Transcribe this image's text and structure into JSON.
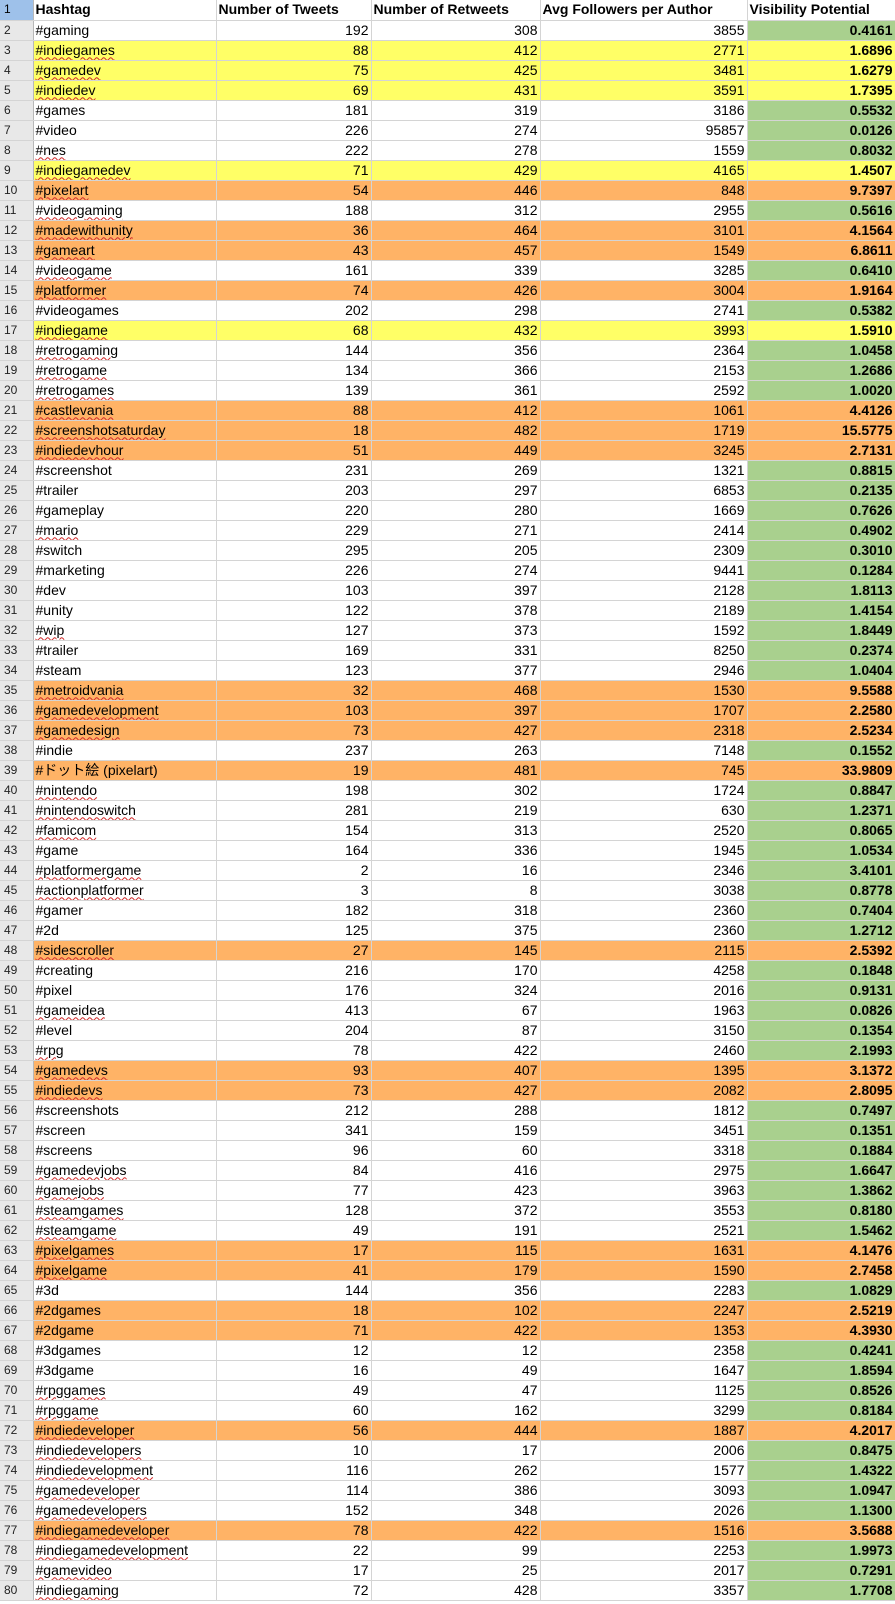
{
  "colors": {
    "yellow_highlight": "#ffff66",
    "orange_highlight": "#ffb366",
    "green_fill": "#a9d08e",
    "row_header_bg": "#e8e8e8",
    "selected_row_header": "#9ec1ea"
  },
  "sheet": {
    "header_row_number": "1",
    "columns": [
      "Hashtag",
      "Number of Tweets",
      "Number of Retweets",
      "Avg Followers per Author",
      "Visibility Potential"
    ],
    "rows": [
      {
        "n": "2",
        "tag": "#gaming",
        "tweets": "192",
        "retweets": "308",
        "followers": "3855",
        "vis": "0.4161",
        "hl": "none",
        "sp": false
      },
      {
        "n": "3",
        "tag": "#indiegames",
        "tweets": "88",
        "retweets": "412",
        "followers": "2771",
        "vis": "1.6896",
        "hl": "yellow",
        "sp": true
      },
      {
        "n": "4",
        "tag": "#gamedev",
        "tweets": "75",
        "retweets": "425",
        "followers": "3481",
        "vis": "1.6279",
        "hl": "yellow",
        "sp": true
      },
      {
        "n": "5",
        "tag": "#indiedev",
        "tweets": "69",
        "retweets": "431",
        "followers": "3591",
        "vis": "1.7395",
        "hl": "yellow",
        "sp": true
      },
      {
        "n": "6",
        "tag": "#games",
        "tweets": "181",
        "retweets": "319",
        "followers": "3186",
        "vis": "0.5532",
        "hl": "none",
        "sp": false
      },
      {
        "n": "7",
        "tag": "#video",
        "tweets": "226",
        "retweets": "274",
        "followers": "95857",
        "vis": "0.0126",
        "hl": "none",
        "sp": false
      },
      {
        "n": "8",
        "tag": "#nes",
        "tweets": "222",
        "retweets": "278",
        "followers": "1559",
        "vis": "0.8032",
        "hl": "none",
        "sp": true
      },
      {
        "n": "9",
        "tag": "#indiegamedev",
        "tweets": "71",
        "retweets": "429",
        "followers": "4165",
        "vis": "1.4507",
        "hl": "yellow",
        "sp": true
      },
      {
        "n": "10",
        "tag": "#pixelart",
        "tweets": "54",
        "retweets": "446",
        "followers": "848",
        "vis": "9.7397",
        "hl": "orange",
        "sp": true
      },
      {
        "n": "11",
        "tag": "#videogaming",
        "tweets": "188",
        "retweets": "312",
        "followers": "2955",
        "vis": "0.5616",
        "hl": "none",
        "sp": true
      },
      {
        "n": "12",
        "tag": "#madewithunity",
        "tweets": "36",
        "retweets": "464",
        "followers": "3101",
        "vis": "4.1564",
        "hl": "orange",
        "sp": true
      },
      {
        "n": "13",
        "tag": "#gameart",
        "tweets": "43",
        "retweets": "457",
        "followers": "1549",
        "vis": "6.8611",
        "hl": "orange",
        "sp": true
      },
      {
        "n": "14",
        "tag": "#videogame",
        "tweets": "161",
        "retweets": "339",
        "followers": "3285",
        "vis": "0.6410",
        "hl": "none",
        "sp": true
      },
      {
        "n": "15",
        "tag": "#platformer",
        "tweets": "74",
        "retweets": "426",
        "followers": "3004",
        "vis": "1.9164",
        "hl": "orange",
        "sp": true
      },
      {
        "n": "16",
        "tag": "#videogames",
        "tweets": "202",
        "retweets": "298",
        "followers": "2741",
        "vis": "0.5382",
        "hl": "none",
        "sp": false
      },
      {
        "n": "17",
        "tag": "#indiegame",
        "tweets": "68",
        "retweets": "432",
        "followers": "3993",
        "vis": "1.5910",
        "hl": "yellow",
        "sp": true
      },
      {
        "n": "18",
        "tag": "#retrogaming",
        "tweets": "144",
        "retweets": "356",
        "followers": "2364",
        "vis": "1.0458",
        "hl": "none",
        "sp": true
      },
      {
        "n": "19",
        "tag": "#retrogame",
        "tweets": "134",
        "retweets": "366",
        "followers": "2153",
        "vis": "1.2686",
        "hl": "none",
        "sp": true
      },
      {
        "n": "20",
        "tag": "#retrogames",
        "tweets": "139",
        "retweets": "361",
        "followers": "2592",
        "vis": "1.0020",
        "hl": "none",
        "sp": true
      },
      {
        "n": "21",
        "tag": "#castlevania",
        "tweets": "88",
        "retweets": "412",
        "followers": "1061",
        "vis": "4.4126",
        "hl": "orange",
        "sp": true
      },
      {
        "n": "22",
        "tag": "#screenshotsaturday",
        "tweets": "18",
        "retweets": "482",
        "followers": "1719",
        "vis": "15.5775",
        "hl": "orange",
        "sp": true
      },
      {
        "n": "23",
        "tag": "#indiedevhour",
        "tweets": "51",
        "retweets": "449",
        "followers": "3245",
        "vis": "2.7131",
        "hl": "orange",
        "sp": true
      },
      {
        "n": "24",
        "tag": "#screenshot",
        "tweets": "231",
        "retweets": "269",
        "followers": "1321",
        "vis": "0.8815",
        "hl": "none",
        "sp": false
      },
      {
        "n": "25",
        "tag": "#trailer",
        "tweets": "203",
        "retweets": "297",
        "followers": "6853",
        "vis": "0.2135",
        "hl": "none",
        "sp": false
      },
      {
        "n": "26",
        "tag": "#gameplay",
        "tweets": "220",
        "retweets": "280",
        "followers": "1669",
        "vis": "0.7626",
        "hl": "none",
        "sp": false
      },
      {
        "n": "27",
        "tag": "#mario",
        "tweets": "229",
        "retweets": "271",
        "followers": "2414",
        "vis": "0.4902",
        "hl": "none",
        "sp": true
      },
      {
        "n": "28",
        "tag": "#switch",
        "tweets": "295",
        "retweets": "205",
        "followers": "2309",
        "vis": "0.3010",
        "hl": "none",
        "sp": false
      },
      {
        "n": "29",
        "tag": "#marketing",
        "tweets": "226",
        "retweets": "274",
        "followers": "9441",
        "vis": "0.1284",
        "hl": "none",
        "sp": false
      },
      {
        "n": "30",
        "tag": "#dev",
        "tweets": "103",
        "retweets": "397",
        "followers": "2128",
        "vis": "1.8113",
        "hl": "none",
        "sp": false
      },
      {
        "n": "31",
        "tag": "#unity",
        "tweets": "122",
        "retweets": "378",
        "followers": "2189",
        "vis": "1.4154",
        "hl": "none",
        "sp": false
      },
      {
        "n": "32",
        "tag": "#wip",
        "tweets": "127",
        "retweets": "373",
        "followers": "1592",
        "vis": "1.8449",
        "hl": "none",
        "sp": true
      },
      {
        "n": "33",
        "tag": "#trailer",
        "tweets": "169",
        "retweets": "331",
        "followers": "8250",
        "vis": "0.2374",
        "hl": "none",
        "sp": false
      },
      {
        "n": "34",
        "tag": "#steam",
        "tweets": "123",
        "retweets": "377",
        "followers": "2946",
        "vis": "1.0404",
        "hl": "none",
        "sp": false
      },
      {
        "n": "35",
        "tag": "#metroidvania",
        "tweets": "32",
        "retweets": "468",
        "followers": "1530",
        "vis": "9.5588",
        "hl": "orange",
        "sp": true
      },
      {
        "n": "36",
        "tag": "#gamedevelopment",
        "tweets": "103",
        "retweets": "397",
        "followers": "1707",
        "vis": "2.2580",
        "hl": "orange",
        "sp": true
      },
      {
        "n": "37",
        "tag": "#gamedesign",
        "tweets": "73",
        "retweets": "427",
        "followers": "2318",
        "vis": "2.5234",
        "hl": "orange",
        "sp": true
      },
      {
        "n": "38",
        "tag": "#indie",
        "tweets": "237",
        "retweets": "263",
        "followers": "7148",
        "vis": "0.1552",
        "hl": "none",
        "sp": false
      },
      {
        "n": "39",
        "tag": "#ドット絵 (pixelart)",
        "tweets": "19",
        "retweets": "481",
        "followers": "745",
        "vis": "33.9809",
        "hl": "orange",
        "sp": false
      },
      {
        "n": "40",
        "tag": "#nintendo",
        "tweets": "198",
        "retweets": "302",
        "followers": "1724",
        "vis": "0.8847",
        "hl": "none",
        "sp": true
      },
      {
        "n": "41",
        "tag": "#nintendoswitch",
        "tweets": "281",
        "retweets": "219",
        "followers": "630",
        "vis": "1.2371",
        "hl": "none",
        "sp": true
      },
      {
        "n": "42",
        "tag": "#famicom",
        "tweets": "154",
        "retweets": "313",
        "followers": "2520",
        "vis": "0.8065",
        "hl": "none",
        "sp": true
      },
      {
        "n": "43",
        "tag": "#game",
        "tweets": "164",
        "retweets": "336",
        "followers": "1945",
        "vis": "1.0534",
        "hl": "none",
        "sp": false
      },
      {
        "n": "44",
        "tag": "#platformergame",
        "tweets": "2",
        "retweets": "16",
        "followers": "2346",
        "vis": "3.4101",
        "hl": "none",
        "sp": true
      },
      {
        "n": "45",
        "tag": "#actionplatformer",
        "tweets": "3",
        "retweets": "8",
        "followers": "3038",
        "vis": "0.8778",
        "hl": "none",
        "sp": true
      },
      {
        "n": "46",
        "tag": "#gamer",
        "tweets": "182",
        "retweets": "318",
        "followers": "2360",
        "vis": "0.7404",
        "hl": "none",
        "sp": false
      },
      {
        "n": "47",
        "tag": "#2d",
        "tweets": "125",
        "retweets": "375",
        "followers": "2360",
        "vis": "1.2712",
        "hl": "none",
        "sp": false
      },
      {
        "n": "48",
        "tag": "#sidescroller",
        "tweets": "27",
        "retweets": "145",
        "followers": "2115",
        "vis": "2.5392",
        "hl": "orange",
        "sp": true
      },
      {
        "n": "49",
        "tag": "#creating",
        "tweets": "216",
        "retweets": "170",
        "followers": "4258",
        "vis": "0.1848",
        "hl": "none",
        "sp": false
      },
      {
        "n": "50",
        "tag": "#pixel",
        "tweets": "176",
        "retweets": "324",
        "followers": "2016",
        "vis": "0.9131",
        "hl": "none",
        "sp": false
      },
      {
        "n": "51",
        "tag": "#gameidea",
        "tweets": "413",
        "retweets": "67",
        "followers": "1963",
        "vis": "0.0826",
        "hl": "none",
        "sp": true
      },
      {
        "n": "52",
        "tag": "#level",
        "tweets": "204",
        "retweets": "87",
        "followers": "3150",
        "vis": "0.1354",
        "hl": "none",
        "sp": false
      },
      {
        "n": "53",
        "tag": "#rpg",
        "tweets": "78",
        "retweets": "422",
        "followers": "2460",
        "vis": "2.1993",
        "hl": "none",
        "sp": true
      },
      {
        "n": "54",
        "tag": "#gamedevs",
        "tweets": "93",
        "retweets": "407",
        "followers": "1395",
        "vis": "3.1372",
        "hl": "orange",
        "sp": true
      },
      {
        "n": "55",
        "tag": "#indiedevs",
        "tweets": "73",
        "retweets": "427",
        "followers": "2082",
        "vis": "2.8095",
        "hl": "orange",
        "sp": true
      },
      {
        "n": "56",
        "tag": "#screenshots",
        "tweets": "212",
        "retweets": "288",
        "followers": "1812",
        "vis": "0.7497",
        "hl": "none",
        "sp": false
      },
      {
        "n": "57",
        "tag": "#screen",
        "tweets": "341",
        "retweets": "159",
        "followers": "3451",
        "vis": "0.1351",
        "hl": "none",
        "sp": false
      },
      {
        "n": "58",
        "tag": "#screens",
        "tweets": "96",
        "retweets": "60",
        "followers": "3318",
        "vis": "0.1884",
        "hl": "none",
        "sp": false
      },
      {
        "n": "59",
        "tag": "#gamedevjobs",
        "tweets": "84",
        "retweets": "416",
        "followers": "2975",
        "vis": "1.6647",
        "hl": "none",
        "sp": true
      },
      {
        "n": "60",
        "tag": "#gamejobs",
        "tweets": "77",
        "retweets": "423",
        "followers": "3963",
        "vis": "1.3862",
        "hl": "none",
        "sp": true
      },
      {
        "n": "61",
        "tag": "#steamgames",
        "tweets": "128",
        "retweets": "372",
        "followers": "3553",
        "vis": "0.8180",
        "hl": "none",
        "sp": true
      },
      {
        "n": "62",
        "tag": "#steamgame",
        "tweets": "49",
        "retweets": "191",
        "followers": "2521",
        "vis": "1.5462",
        "hl": "none",
        "sp": true
      },
      {
        "n": "63",
        "tag": "#pixelgames",
        "tweets": "17",
        "retweets": "115",
        "followers": "1631",
        "vis": "4.1476",
        "hl": "orange",
        "sp": true
      },
      {
        "n": "64",
        "tag": "#pixelgame",
        "tweets": "41",
        "retweets": "179",
        "followers": "1590",
        "vis": "2.7458",
        "hl": "orange",
        "sp": true
      },
      {
        "n": "65",
        "tag": "#3d",
        "tweets": "144",
        "retweets": "356",
        "followers": "2283",
        "vis": "1.0829",
        "hl": "none",
        "sp": false
      },
      {
        "n": "66",
        "tag": "#2dgames",
        "tweets": "18",
        "retweets": "102",
        "followers": "2247",
        "vis": "2.5219",
        "hl": "orange",
        "sp": false
      },
      {
        "n": "67",
        "tag": "#2dgame",
        "tweets": "71",
        "retweets": "422",
        "followers": "1353",
        "vis": "4.3930",
        "hl": "orange",
        "sp": false
      },
      {
        "n": "68",
        "tag": "#3dgames",
        "tweets": "12",
        "retweets": "12",
        "followers": "2358",
        "vis": "0.4241",
        "hl": "none",
        "sp": false
      },
      {
        "n": "69",
        "tag": "#3dgame",
        "tweets": "16",
        "retweets": "49",
        "followers": "1647",
        "vis": "1.8594",
        "hl": "none",
        "sp": false
      },
      {
        "n": "70",
        "tag": "#rpggames",
        "tweets": "49",
        "retweets": "47",
        "followers": "1125",
        "vis": "0.8526",
        "hl": "none",
        "sp": true
      },
      {
        "n": "71",
        "tag": "#rpggame",
        "tweets": "60",
        "retweets": "162",
        "followers": "3299",
        "vis": "0.8184",
        "hl": "none",
        "sp": true
      },
      {
        "n": "72",
        "tag": "#indiedeveloper",
        "tweets": "56",
        "retweets": "444",
        "followers": "1887",
        "vis": "4.2017",
        "hl": "orange",
        "sp": true
      },
      {
        "n": "73",
        "tag": "#indiedevelopers",
        "tweets": "10",
        "retweets": "17",
        "followers": "2006",
        "vis": "0.8475",
        "hl": "none",
        "sp": true
      },
      {
        "n": "74",
        "tag": "#indiedevelopment",
        "tweets": "116",
        "retweets": "262",
        "followers": "1577",
        "vis": "1.4322",
        "hl": "none",
        "sp": true
      },
      {
        "n": "75",
        "tag": "#gamedeveloper",
        "tweets": "114",
        "retweets": "386",
        "followers": "3093",
        "vis": "1.0947",
        "hl": "none",
        "sp": true
      },
      {
        "n": "76",
        "tag": "#gamedevelopers",
        "tweets": "152",
        "retweets": "348",
        "followers": "2026",
        "vis": "1.1300",
        "hl": "none",
        "sp": true
      },
      {
        "n": "77",
        "tag": "#indiegamedeveloper",
        "tweets": "78",
        "retweets": "422",
        "followers": "1516",
        "vis": "3.5688",
        "hl": "orange",
        "sp": true
      },
      {
        "n": "78",
        "tag": "#indiegamedevelopment",
        "tweets": "22",
        "retweets": "99",
        "followers": "2253",
        "vis": "1.9973",
        "hl": "none",
        "sp": true
      },
      {
        "n": "79",
        "tag": "#gamevideo",
        "tweets": "17",
        "retweets": "25",
        "followers": "2017",
        "vis": "0.7291",
        "hl": "none",
        "sp": true
      },
      {
        "n": "80",
        "tag": "#indiegaming",
        "tweets": "72",
        "retweets": "428",
        "followers": "3357",
        "vis": "1.7708",
        "hl": "none",
        "sp": true
      }
    ]
  }
}
